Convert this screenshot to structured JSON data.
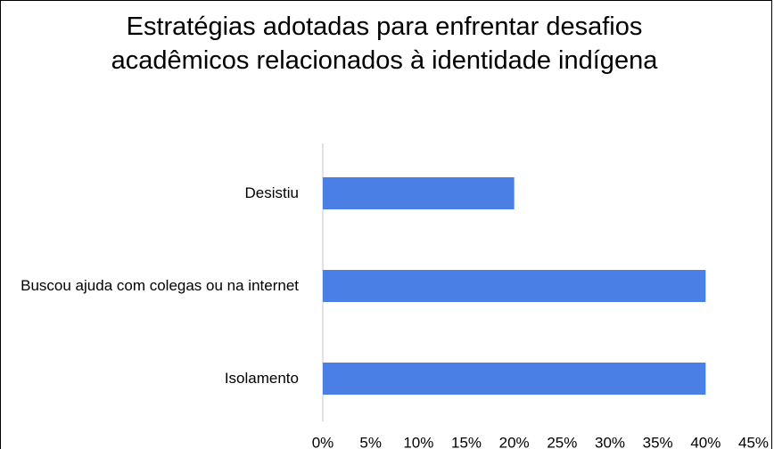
{
  "chart_data": {
    "type": "bar",
    "orientation": "horizontal",
    "title": "Estratégias adotadas para enfrentar desafios acadêmicos relacionados à identidade indígena",
    "categories": [
      "Desistiu",
      "Buscou ajuda com colegas ou na internet",
      "Isolamento"
    ],
    "values": [
      20,
      40,
      40
    ],
    "color": "#4a7fe6",
    "xlim": [
      0,
      45
    ],
    "xticks": [
      {
        "value": 0,
        "label": "0%"
      },
      {
        "value": 5,
        "label": "5%"
      },
      {
        "value": 10,
        "label": "10%"
      },
      {
        "value": 15,
        "label": "15%"
      },
      {
        "value": 20,
        "label": "20%"
      },
      {
        "value": 25,
        "label": "25%"
      },
      {
        "value": 30,
        "label": "30%"
      },
      {
        "value": 35,
        "label": "35%"
      },
      {
        "value": 40,
        "label": "40%"
      },
      {
        "value": 45,
        "label": "45%"
      }
    ],
    "grid": false
  }
}
